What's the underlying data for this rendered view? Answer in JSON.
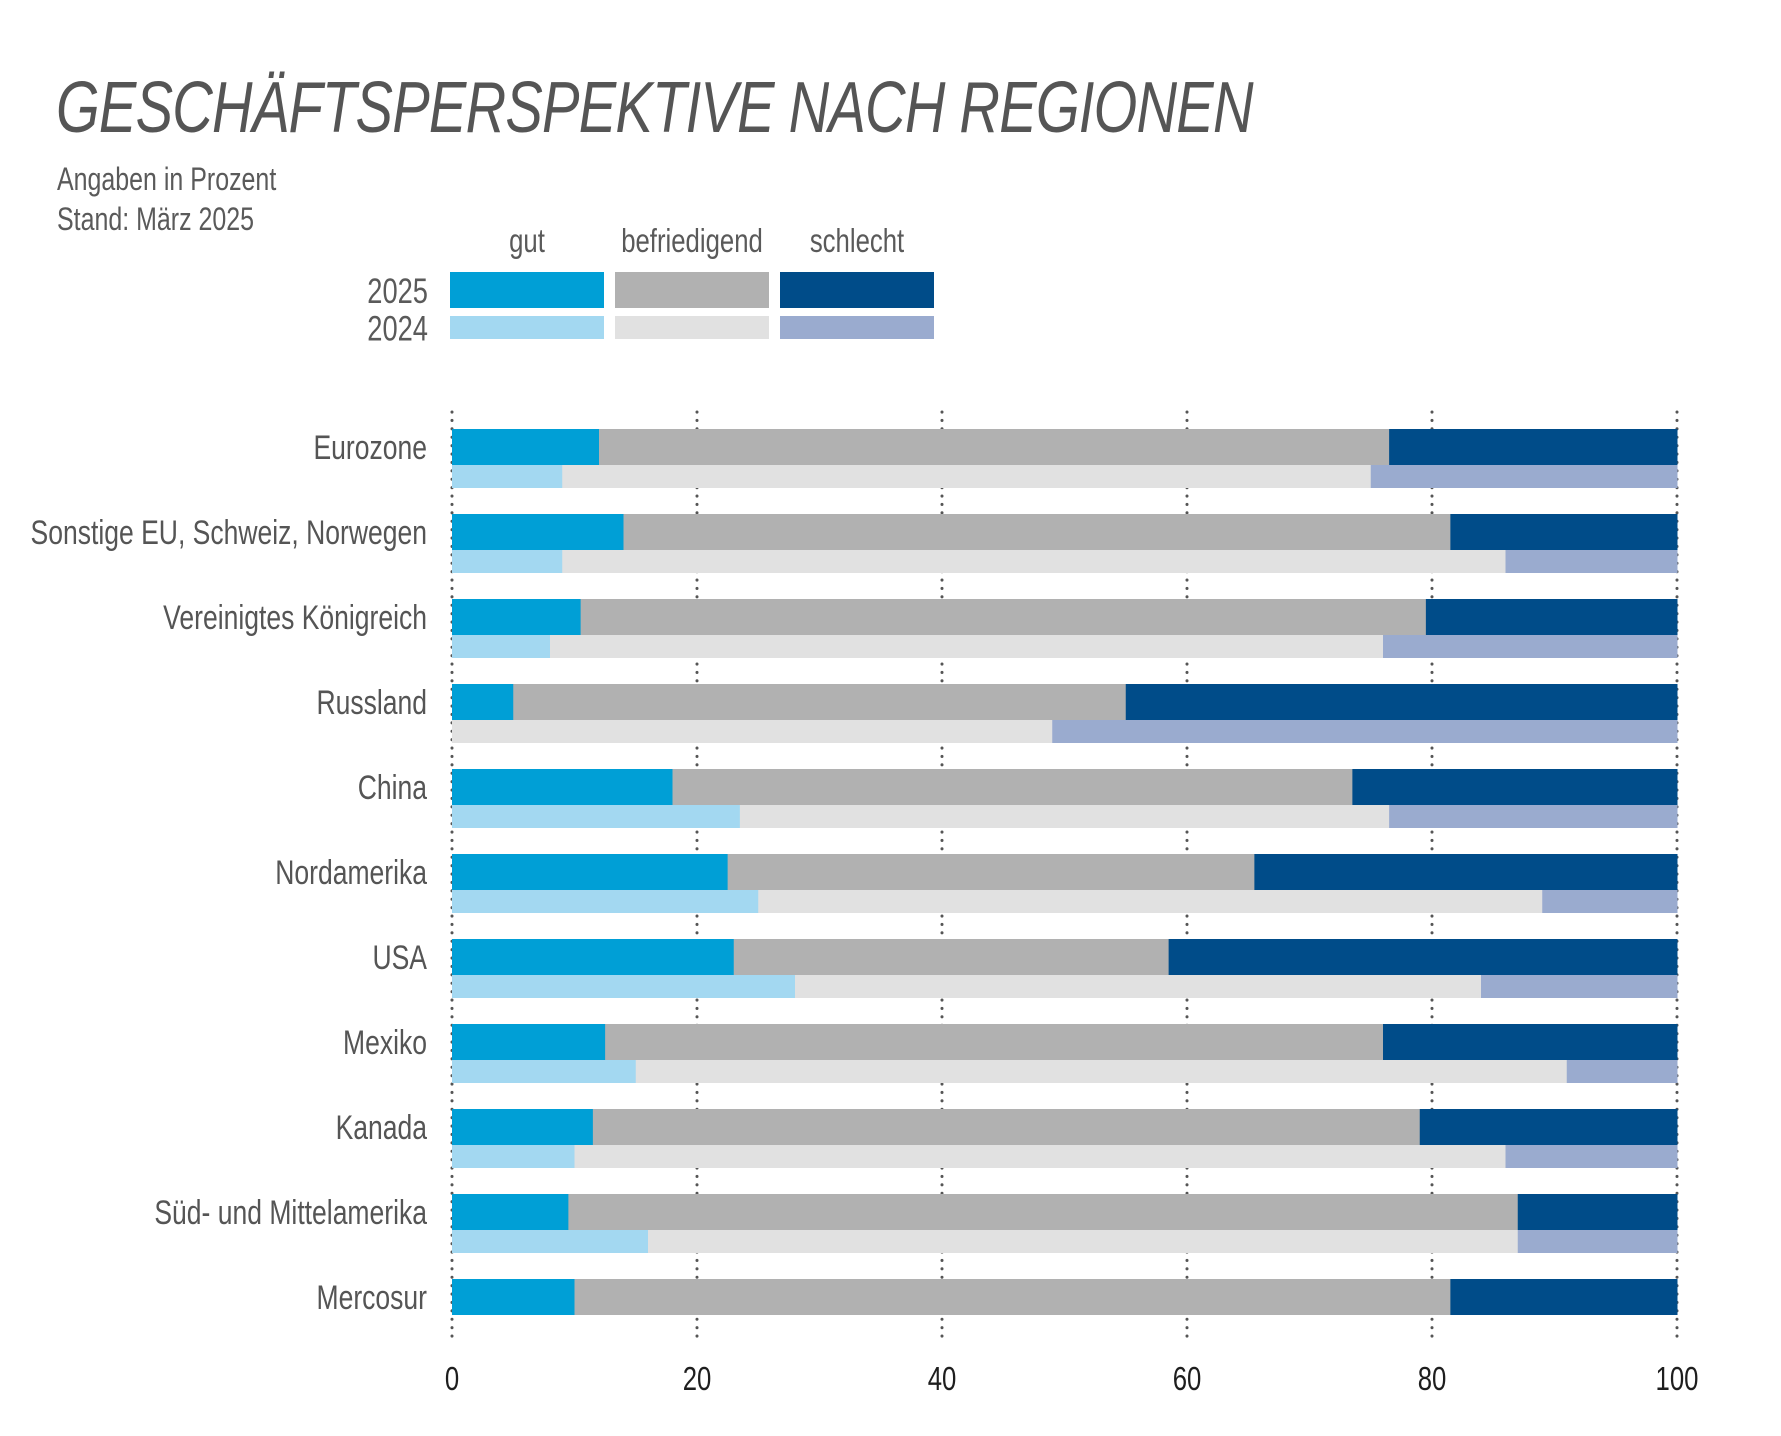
{
  "header": {
    "title": "GESCHÄFTSPERSPEKTIVE NACH REGIONEN",
    "subtitle_unit": "Angaben in Prozent",
    "subtitle_date": "Stand: März 2025"
  },
  "legend": {
    "categories": [
      "gut",
      "befriedigend",
      "schlecht"
    ],
    "years": [
      "2025",
      "2024"
    ]
  },
  "colors": {
    "2025": [
      "#009fd6",
      "#b1b1b1",
      "#004c89"
    ],
    "2024": [
      "#a3d8f1",
      "#e1e1e1",
      "#9aabcf"
    ],
    "gridline": "#555555",
    "row_label": "#555555",
    "tick_label": "#1e1e1e"
  },
  "chart_data": {
    "type": "bar",
    "orientation": "horizontal",
    "stacked": true,
    "title": "GESCHÄFTSPERSPEKTIVE NACH REGIONEN",
    "subtitle": "Angaben in Prozent; Stand: März 2025",
    "xlabel": "",
    "ylabel": "",
    "xlim": [
      0,
      100
    ],
    "xticks": [
      0,
      20,
      40,
      60,
      80,
      100
    ],
    "grid": "vertical dotted",
    "legend_position": "top-left",
    "stack_order": [
      "gut",
      "befriedigend",
      "schlecht"
    ],
    "categories": [
      "Eurozone",
      "Sonstige EU, Schweiz, Norwegen",
      "Vereinigtes Königreich",
      "Russland",
      "China",
      "Nordamerika",
      "USA",
      "Mexiko",
      "Kanada",
      "Süd- und Mittelamerika",
      "Mercosur"
    ],
    "series": [
      {
        "name": "2025",
        "values": [
          {
            "gut": 12,
            "befriedigend": 64.5,
            "schlecht": 23.5
          },
          {
            "gut": 14,
            "befriedigend": 67.5,
            "schlecht": 18.5
          },
          {
            "gut": 10.5,
            "befriedigend": 69,
            "schlecht": 20.5
          },
          {
            "gut": 5,
            "befriedigend": 50,
            "schlecht": 45
          },
          {
            "gut": 18,
            "befriedigend": 55.5,
            "schlecht": 26.5
          },
          {
            "gut": 22.5,
            "befriedigend": 43,
            "schlecht": 34.5
          },
          {
            "gut": 23,
            "befriedigend": 35.5,
            "schlecht": 41.5
          },
          {
            "gut": 12.5,
            "befriedigend": 63.5,
            "schlecht": 24
          },
          {
            "gut": 11.5,
            "befriedigend": 67.5,
            "schlecht": 21
          },
          {
            "gut": 9.5,
            "befriedigend": 77.5,
            "schlecht": 13
          },
          {
            "gut": 10,
            "befriedigend": 71.5,
            "schlecht": 18.5
          }
        ]
      },
      {
        "name": "2024",
        "values": [
          {
            "gut": 9,
            "befriedigend": 66,
            "schlecht": 25
          },
          {
            "gut": 9,
            "befriedigend": 77,
            "schlecht": 14
          },
          {
            "gut": 8,
            "befriedigend": 68,
            "schlecht": 24
          },
          {
            "gut": 0,
            "befriedigend": 49,
            "schlecht": 51
          },
          {
            "gut": 23.5,
            "befriedigend": 53,
            "schlecht": 23.5
          },
          {
            "gut": 25,
            "befriedigend": 64,
            "schlecht": 11
          },
          {
            "gut": 28,
            "befriedigend": 56,
            "schlecht": 16
          },
          {
            "gut": 15,
            "befriedigend": 76,
            "schlecht": 9
          },
          {
            "gut": 10,
            "befriedigend": 76,
            "schlecht": 14
          },
          {
            "gut": 16,
            "befriedigend": 71,
            "schlecht": 13
          },
          null
        ]
      }
    ]
  }
}
